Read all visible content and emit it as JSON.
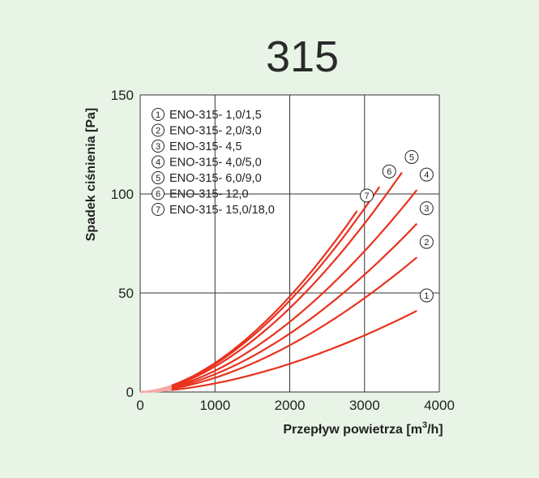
{
  "chart_data": {
    "type": "line",
    "title": "315",
    "xlabel": "Przepływ  powietrza [m³/h]",
    "xlabel_main": "Przepływ  powietrza [m",
    "xlabel_sup": "3",
    "xlabel_tail": "/h]",
    "ylabel": "Spadek  ciśnienia [Pa]",
    "xlim": [
      0,
      4000
    ],
    "ylim": [
      0,
      150
    ],
    "x_ticks": [
      {
        "value": 0,
        "label": "0"
      },
      {
        "value": 1000,
        "label": "1000"
      },
      {
        "value": 2000,
        "label": "2000"
      },
      {
        "value": 3000,
        "label": "3000"
      },
      {
        "value": 4000,
        "label": "4000"
      }
    ],
    "y_ticks": [
      {
        "value": 0,
        "label": "0"
      },
      {
        "value": 50,
        "label": "50"
      },
      {
        "value": 100,
        "label": "100"
      },
      {
        "value": 150,
        "label": "150"
      }
    ],
    "grid": true,
    "legend_position": "top-left",
    "line_color": "#e8321e",
    "faded_color": "#f4aaa4",
    "grid_color": "#333333",
    "plot_bg": "#ffffff",
    "faded_until_x": 420,
    "series": [
      {
        "name": "ENO-315- 1,0/1,5",
        "number": "1",
        "k": 41,
        "x_end": 3700
      },
      {
        "name": "ENO-315- 2,0/3,0",
        "number": "2",
        "k": 68,
        "x_end": 3700
      },
      {
        "name": "ENO-315- 4,5",
        "number": "3",
        "k": 85,
        "x_end": 3700
      },
      {
        "name": "ENO-315- 4,0/5,0",
        "number": "4",
        "k": 102,
        "x_end": 3700
      },
      {
        "name": "ENO-315- 6,0/9,0",
        "number": "5",
        "k": 122,
        "x_end": 3500
      },
      {
        "name": "ENO-315- 12,0",
        "number": "6",
        "k": 133,
        "x_end": 3200
      },
      {
        "name": "ENO-315- 15,0/18,0",
        "number": "7",
        "k": 139,
        "x_end": 2900
      }
    ]
  }
}
